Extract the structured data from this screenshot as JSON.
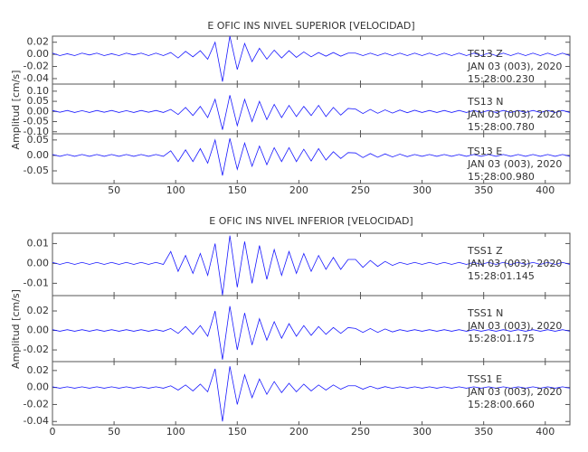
{
  "chart_data": [
    {
      "type": "line",
      "title": "E OFIC INS NIVEL SUPERIOR [VELOCIDAD]",
      "y_label": "Amplitud [cm/s]",
      "xlim": [
        0,
        420
      ],
      "xticks": [
        50,
        100,
        150,
        200,
        250,
        300,
        350,
        400
      ],
      "x": [
        0,
        6,
        12,
        18,
        24,
        30,
        36,
        42,
        48,
        54,
        60,
        66,
        72,
        78,
        84,
        90,
        96,
        102,
        108,
        114,
        120,
        126,
        132,
        138,
        144,
        150,
        156,
        162,
        168,
        174,
        180,
        186,
        192,
        198,
        204,
        210,
        216,
        222,
        228,
        234,
        240,
        246,
        252,
        258,
        264,
        270,
        276,
        282,
        288,
        294,
        300,
        306,
        312,
        318,
        324,
        330,
        336,
        342,
        348,
        354,
        360,
        366,
        372,
        378,
        384,
        390,
        396,
        402,
        408,
        414,
        420
      ],
      "panels": [
        {
          "name": "TS13  Z",
          "date": "JAN 03 (003), 2020",
          "time": "15:28:00.230",
          "color": "#1a1aff",
          "ylim": [
            -0.049,
            0.03
          ],
          "yticks": [
            {
              "value": 0.02,
              "label": "0.02"
            },
            {
              "value": 0,
              "label": "0.00"
            },
            {
              "value": -0.02,
              "label": "-0.02"
            },
            {
              "value": -0.04,
              "label": "-0.04"
            }
          ],
          "values": [
            0.002,
            -0.002,
            0.001,
            -0.002,
            0.002,
            -0.001,
            0.002,
            -0.002,
            0.001,
            -0.002,
            0.002,
            -0.001,
            0.002,
            -0.002,
            0.002,
            -0.002,
            0.003,
            -0.006,
            0.005,
            -0.004,
            0.006,
            -0.008,
            0.02,
            -0.045,
            0.03,
            -0.025,
            0.018,
            -0.012,
            0.01,
            -0.008,
            0.007,
            -0.006,
            0.006,
            -0.005,
            0.004,
            -0.004,
            0.003,
            -0.003,
            0.003,
            -0.003,
            0.002,
            0.002,
            -0.002,
            0.002,
            -0.002,
            0.002,
            -0.002,
            0.002,
            -0.002,
            0.002,
            -0.002,
            0.002,
            -0.002,
            0.002,
            -0.002,
            0.002,
            -0.002,
            0.002,
            -0.002,
            0.002,
            -0.002,
            0.002,
            -0.002,
            0.002,
            -0.002,
            0.002,
            -0.002,
            0.002,
            -0.002,
            0.002,
            -0.002
          ]
        },
        {
          "name": "TS13  N",
          "date": "JAN 03 (003), 2020",
          "time": "15:28:00.780",
          "color": "#1a1aff",
          "ylim": [
            -0.11,
            0.135
          ],
          "yticks": [
            {
              "value": 0.1,
              "label": "0.10"
            },
            {
              "value": 0.05,
              "label": "0.05"
            },
            {
              "value": 0,
              "label": "0.00"
            },
            {
              "value": -0.05,
              "label": "-0.05"
            },
            {
              "value": -0.1,
              "label": "-0.10"
            }
          ],
          "values": [
            0.005,
            -0.004,
            0.005,
            -0.005,
            0.004,
            -0.005,
            0.005,
            -0.004,
            0.005,
            -0.005,
            0.004,
            -0.005,
            0.005,
            -0.004,
            0.005,
            -0.005,
            0.01,
            -0.015,
            0.02,
            -0.02,
            0.025,
            -0.03,
            0.06,
            -0.09,
            0.08,
            -0.07,
            0.06,
            -0.05,
            0.05,
            -0.04,
            0.035,
            -0.03,
            0.03,
            -0.025,
            0.025,
            -0.02,
            0.03,
            -0.025,
            0.02,
            -0.018,
            0.015,
            0.012,
            -0.01,
            0.01,
            -0.009,
            0.008,
            -0.008,
            0.007,
            -0.006,
            0.006,
            -0.005,
            0.005,
            -0.005,
            0.005,
            -0.005,
            0.005,
            -0.005,
            0.005,
            -0.005,
            0.005,
            -0.005,
            0.005,
            -0.005,
            0.005,
            -0.005,
            0.005,
            -0.005,
            0.005,
            -0.005,
            0.005,
            -0.005
          ]
        },
        {
          "name": "TS13  E",
          "date": "JAN 03 (003), 2020",
          "time": "15:28:00.980",
          "color": "#1a1aff",
          "ylim": [
            -0.091,
            0.07
          ],
          "yticks": [
            {
              "value": 0.05,
              "label": "0.05"
            },
            {
              "value": 0,
              "label": "0.00"
            },
            {
              "value": -0.05,
              "label": "-0.05"
            }
          ],
          "values": [
            0.003,
            -0.003,
            0.003,
            -0.003,
            0.003,
            -0.003,
            0.003,
            -0.003,
            0.003,
            -0.003,
            0.003,
            -0.003,
            0.003,
            -0.003,
            0.003,
            -0.003,
            0.015,
            -0.02,
            0.018,
            -0.02,
            0.022,
            -0.025,
            0.05,
            -0.065,
            0.055,
            -0.045,
            0.04,
            -0.035,
            0.03,
            -0.03,
            0.025,
            -0.02,
            0.025,
            -0.02,
            0.02,
            -0.018,
            0.022,
            -0.015,
            0.012,
            -0.01,
            0.009,
            0.008,
            -0.007,
            0.006,
            -0.006,
            0.005,
            -0.005,
            0.004,
            -0.004,
            0.003,
            -0.003,
            0.003,
            -0.003,
            0.003,
            -0.003,
            0.003,
            -0.003,
            0.003,
            -0.003,
            0.003,
            -0.003,
            0.003,
            -0.003,
            0.003,
            -0.003,
            0.003,
            -0.003,
            0.003,
            -0.003,
            0.003,
            -0.003
          ]
        }
      ]
    },
    {
      "type": "line",
      "title": "E OFIC INS NIVEL INFERIOR [VELOCIDAD]",
      "y_label": "Amplitud [cm/s]",
      "xlim": [
        0,
        420
      ],
      "xticks": [
        0,
        50,
        100,
        150,
        200,
        250,
        300,
        350,
        400
      ],
      "x": [
        0,
        6,
        12,
        18,
        24,
        30,
        36,
        42,
        48,
        54,
        60,
        66,
        72,
        78,
        84,
        90,
        96,
        102,
        108,
        114,
        120,
        126,
        132,
        138,
        144,
        150,
        156,
        162,
        168,
        174,
        180,
        186,
        192,
        198,
        204,
        210,
        216,
        222,
        228,
        234,
        240,
        246,
        252,
        258,
        264,
        270,
        276,
        282,
        288,
        294,
        300,
        306,
        312,
        318,
        324,
        330,
        336,
        342,
        348,
        354,
        360,
        366,
        372,
        378,
        384,
        390,
        396,
        402,
        408,
        414,
        420
      ],
      "panels": [
        {
          "name": "TSS1   Z",
          "date": "JAN 03 (003), 2020",
          "time": "15:28:01.145",
          "color": "#1a1aff",
          "ylim": [
            -0.0162,
            0.0152
          ],
          "yticks": [
            {
              "value": 0.01,
              "label": "0.01"
            },
            {
              "value": 0,
              "label": "0.00"
            },
            {
              "value": -0.01,
              "label": "-0.01"
            }
          ],
          "values": [
            0.0005,
            -0.0005,
            0.0005,
            -0.0005,
            0.0005,
            -0.0005,
            0.0005,
            -0.0005,
            0.0005,
            -0.0005,
            0.0005,
            -0.0005,
            0.0005,
            -0.0005,
            0.0005,
            -0.0005,
            0.006,
            -0.004,
            0.004,
            -0.005,
            0.005,
            -0.006,
            0.01,
            -0.016,
            0.014,
            -0.012,
            0.011,
            -0.01,
            0.009,
            -0.008,
            0.007,
            -0.006,
            0.006,
            -0.005,
            0.005,
            -0.004,
            0.004,
            -0.003,
            0.003,
            -0.003,
            0.002,
            0.002,
            -0.002,
            0.0015,
            -0.0015,
            0.001,
            -0.001,
            0.0005,
            -0.0005,
            0.0005,
            -0.0005,
            0.0005,
            -0.0005,
            0.0005,
            -0.0005,
            0.0005,
            -0.0005,
            0.0005,
            -0.0005,
            0.0005,
            -0.0005,
            0.0005,
            -0.0005,
            0.0005,
            -0.0005,
            0.0005,
            -0.0005,
            0.0005,
            -0.0005,
            0.0005,
            -0.0005
          ]
        },
        {
          "name": "TSS1   N",
          "date": "JAN 03 (003), 2020",
          "time": "15:28:01.175",
          "color": "#1a1aff",
          "ylim": [
            -0.032,
            0.0358
          ],
          "yticks": [
            {
              "value": 0.02,
              "label": "0.02"
            },
            {
              "value": 0,
              "label": "0.00"
            },
            {
              "value": -0.02,
              "label": "-0.02"
            }
          ],
          "values": [
            0.0008,
            -0.0008,
            0.0008,
            -0.0008,
            0.0008,
            -0.0008,
            0.0008,
            -0.0008,
            0.0008,
            -0.0008,
            0.0008,
            -0.0008,
            0.0008,
            -0.0008,
            0.0008,
            -0.0008,
            0.002,
            -0.003,
            0.004,
            -0.004,
            0.005,
            -0.006,
            0.02,
            -0.03,
            0.025,
            -0.02,
            0.018,
            -0.015,
            0.012,
            -0.01,
            0.009,
            -0.008,
            0.007,
            -0.006,
            0.005,
            -0.005,
            0.004,
            -0.004,
            0.003,
            -0.003,
            0.003,
            0.002,
            -0.002,
            0.002,
            -0.002,
            0.0015,
            -0.0015,
            0.0008,
            -0.0008,
            0.0008,
            -0.0008,
            0.0008,
            -0.0008,
            0.0008,
            -0.0008,
            0.0008,
            -0.0008,
            0.0008,
            -0.0008,
            0.0008,
            -0.0008,
            0.0008,
            -0.0008,
            0.0008,
            -0.0008,
            0.0008,
            -0.0008,
            0.0008,
            -0.0008,
            0.0008,
            -0.0008
          ]
        },
        {
          "name": "TSS1   E",
          "date": "JAN 03 (003), 2020",
          "time": "15:28:00.660",
          "color": "#1a1aff",
          "ylim": [
            -0.044,
            0.0305
          ],
          "yticks": [
            {
              "value": 0.02,
              "label": "0.02"
            },
            {
              "value": 0,
              "label": "0.00"
            },
            {
              "value": -0.02,
              "label": "-0.02"
            },
            {
              "value": -0.04,
              "label": "-0.04"
            }
          ],
          "values": [
            0.0008,
            -0.0008,
            0.0008,
            -0.0008,
            0.0008,
            -0.0008,
            0.0008,
            -0.0008,
            0.0008,
            -0.0008,
            0.0008,
            -0.0008,
            0.0008,
            -0.0008,
            0.0008,
            -0.0008,
            0.002,
            -0.003,
            0.003,
            -0.004,
            0.004,
            -0.005,
            0.022,
            -0.04,
            0.025,
            -0.02,
            0.015,
            -0.012,
            0.01,
            -0.008,
            0.007,
            -0.006,
            0.005,
            -0.005,
            0.004,
            -0.004,
            0.003,
            -0.003,
            0.003,
            -0.002,
            0.002,
            0.002,
            -0.002,
            0.0015,
            -0.0015,
            0.001,
            -0.001,
            0.0008,
            -0.0008,
            0.0008,
            -0.0008,
            0.0008,
            -0.0008,
            0.0008,
            -0.0008,
            0.0008,
            -0.0008,
            0.0008,
            -0.0008,
            0.0008,
            -0.0008,
            0.0008,
            -0.0008,
            0.0008,
            -0.0008,
            0.0008,
            -0.0008,
            0.0008,
            -0.0008,
            0.0008,
            -0.0008
          ]
        }
      ]
    }
  ]
}
